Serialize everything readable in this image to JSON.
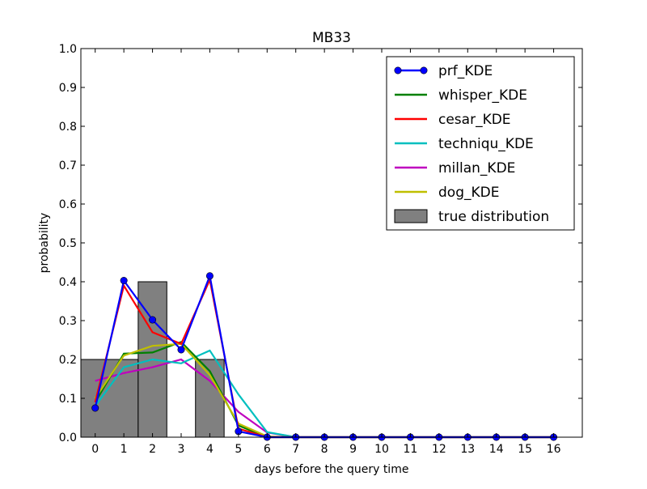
{
  "chart_data": {
    "type": "line",
    "title": "MB33",
    "xlabel": "days before the query time",
    "ylabel": "probability",
    "xlim": [
      -0.5,
      17
    ],
    "ylim": [
      0,
      1.0
    ],
    "x": [
      0,
      1,
      2,
      3,
      4,
      5,
      6,
      7,
      8,
      9,
      10,
      11,
      12,
      13,
      14,
      15,
      16
    ],
    "x_tick_labels": [
      "0",
      "1",
      "2",
      "3",
      "4",
      "5",
      "6",
      "7",
      "8",
      "9",
      "10",
      "11",
      "12",
      "13",
      "14",
      "15",
      "16"
    ],
    "y_ticks": [
      0.0,
      0.1,
      0.2,
      0.3,
      0.4,
      0.5,
      0.6,
      0.7,
      0.8,
      0.9,
      1.0
    ],
    "y_tick_labels": [
      "0.0",
      "0.1",
      "0.2",
      "0.3",
      "0.4",
      "0.5",
      "0.6",
      "0.7",
      "0.8",
      "0.9",
      "1.0"
    ],
    "legend_position": "top-right",
    "series": [
      {
        "name": "prf_KDE",
        "color": "#0000ff",
        "marker": "circle",
        "values": [
          0.075,
          0.403,
          0.302,
          0.225,
          0.415,
          0.015,
          0.0,
          0.0,
          0.0,
          0.0,
          0.0,
          0.0,
          0.0,
          0.0,
          0.0,
          0.0,
          0.0
        ]
      },
      {
        "name": "whisper_KDE",
        "color": "#008000",
        "marker": "none",
        "values": [
          0.09,
          0.215,
          0.218,
          0.245,
          0.17,
          0.03,
          0.0,
          0.0,
          0.0,
          0.0,
          0.0,
          0.0,
          0.0,
          0.0,
          0.0,
          0.0,
          0.0
        ]
      },
      {
        "name": "cesar_KDE",
        "color": "#ff0000",
        "marker": "none",
        "values": [
          0.09,
          0.39,
          0.27,
          0.24,
          0.405,
          0.022,
          0.0,
          0.0,
          0.0,
          0.0,
          0.0,
          0.0,
          0.0,
          0.0,
          0.0,
          0.0,
          0.0
        ]
      },
      {
        "name": "techniqu_KDE",
        "color": "#00bfbf",
        "marker": "none",
        "values": [
          0.08,
          0.18,
          0.2,
          0.19,
          0.223,
          0.11,
          0.013,
          0.0,
          0.0,
          0.0,
          0.0,
          0.0,
          0.0,
          0.0,
          0.0,
          0.0,
          0.0
        ]
      },
      {
        "name": "millan_KDE",
        "color": "#bf00bf",
        "marker": "none",
        "values": [
          0.145,
          0.165,
          0.18,
          0.2,
          0.145,
          0.065,
          0.012,
          0.0,
          0.0,
          0.0,
          0.0,
          0.0,
          0.0,
          0.0,
          0.0,
          0.0,
          0.0
        ]
      },
      {
        "name": "dog_KDE",
        "color": "#bfbf00",
        "marker": "none",
        "values": [
          0.1,
          0.21,
          0.235,
          0.24,
          0.16,
          0.035,
          0.002,
          0.0,
          0.0,
          0.0,
          0.0,
          0.0,
          0.0,
          0.0,
          0.0,
          0.0,
          0.0
        ]
      }
    ],
    "bars": {
      "name": "true distribution",
      "color": "#808080",
      "items": [
        {
          "x_start": -0.5,
          "x_end": 1.5,
          "value": 0.2
        },
        {
          "x_start": 1.5,
          "x_end": 2.5,
          "value": 0.4
        },
        {
          "x_start": 3.5,
          "x_end": 4.5,
          "value": 0.2
        }
      ]
    }
  }
}
